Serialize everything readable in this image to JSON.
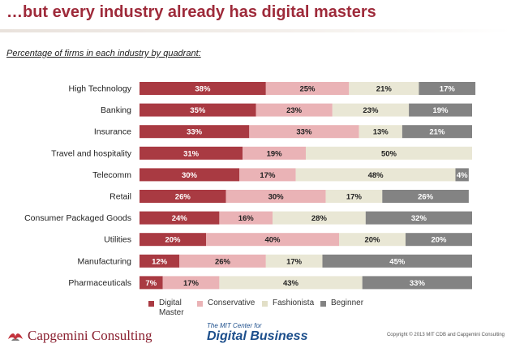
{
  "header": {
    "title": "…but every industry already has digital masters",
    "subtitle": "Percentage of firms in each industry by quadrant:"
  },
  "chart_data": {
    "type": "bar",
    "orientation": "horizontal",
    "stacked": true,
    "unit": "%",
    "categories": [
      "High Technology",
      "Banking",
      "Insurance",
      "Travel and hospitality",
      "Telecomm",
      "Retail",
      "Consumer Packaged Goods",
      "Utilities",
      "Manufacturing",
      "Pharmaceuticals"
    ],
    "series": [
      {
        "name": "Digital Master",
        "color": "#a93a42",
        "label_color": "#ffffff",
        "values": [
          38,
          35,
          33,
          31,
          30,
          26,
          24,
          20,
          12,
          7
        ]
      },
      {
        "name": "Conservative",
        "color": "#eab3b6",
        "label_color": "#222222",
        "values": [
          25,
          23,
          33,
          19,
          17,
          30,
          16,
          40,
          26,
          17
        ]
      },
      {
        "name": "Fashionista",
        "color": "#e9e7d5",
        "label_color": "#222222",
        "values": [
          21,
          23,
          13,
          50,
          48,
          17,
          28,
          20,
          17,
          43
        ]
      },
      {
        "name": "Beginner",
        "color": "#838383",
        "label_color": "#ffffff",
        "values": [
          17,
          19,
          21,
          0,
          4,
          26,
          32,
          20,
          45,
          33
        ]
      }
    ],
    "xlim": [
      0,
      100
    ],
    "legend_position": "bottom"
  },
  "legend": {
    "items": [
      {
        "lines": [
          "Digital",
          "Master"
        ],
        "color": "#a93a42"
      },
      {
        "lines": [
          "Conservative"
        ],
        "color": "#eab3b6"
      },
      {
        "lines": [
          "Fashionista"
        ],
        "color": "#e2dfc7"
      },
      {
        "lines": [
          "Beginner"
        ],
        "color": "#838383"
      }
    ]
  },
  "footer": {
    "capgemini": "Capgemini Consulting",
    "mit_top": "The MIT Center for",
    "mit_bottom": "Digital Business",
    "copyright": "Copyright © 2013 MIT CDB and Capgemini Consulting"
  }
}
